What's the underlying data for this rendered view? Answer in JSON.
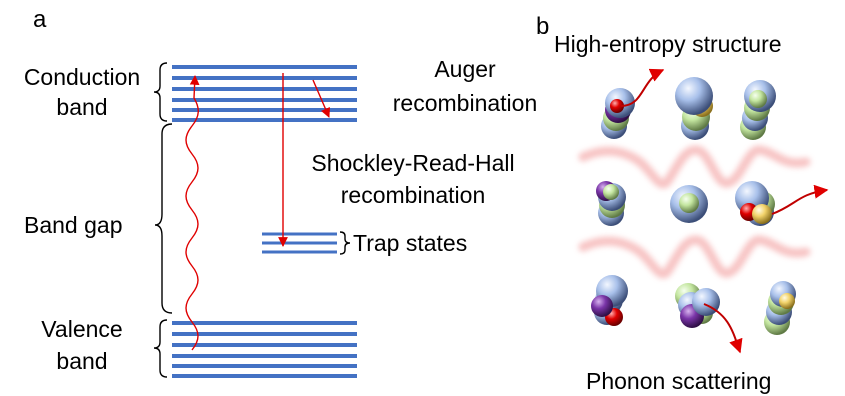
{
  "panels": {
    "a": "a",
    "b": "b"
  },
  "panel_a": {
    "conduction_label_1": "Conduction",
    "conduction_label_2": "band",
    "band_gap_label": "Band gap",
    "valence_label_1": "Valence",
    "valence_label_2": "band",
    "auger_label_1": "Auger",
    "auger_label_2": "recombination",
    "srh_label_1": "Shockley-Read-Hall",
    "srh_label_2": "recombination",
    "trap_label": "Trap states"
  },
  "panel_b": {
    "title": "High-entropy structure",
    "footer": "Phonon scattering"
  },
  "colors": {
    "band_line": "#4472c4",
    "arrow": "#e00000",
    "wave": "#f6b9b9",
    "sphere_blue": "#9db6e3",
    "sphere_green": "#c4e6a0",
    "sphere_yellow": "#f2d36b",
    "sphere_purple": "#7a35a8",
    "sphere_red": "#e00000"
  },
  "icons": {
    "bracket": "curly-brace-icon",
    "atom": "sphere-icon",
    "arrow": "arrow-icon"
  }
}
